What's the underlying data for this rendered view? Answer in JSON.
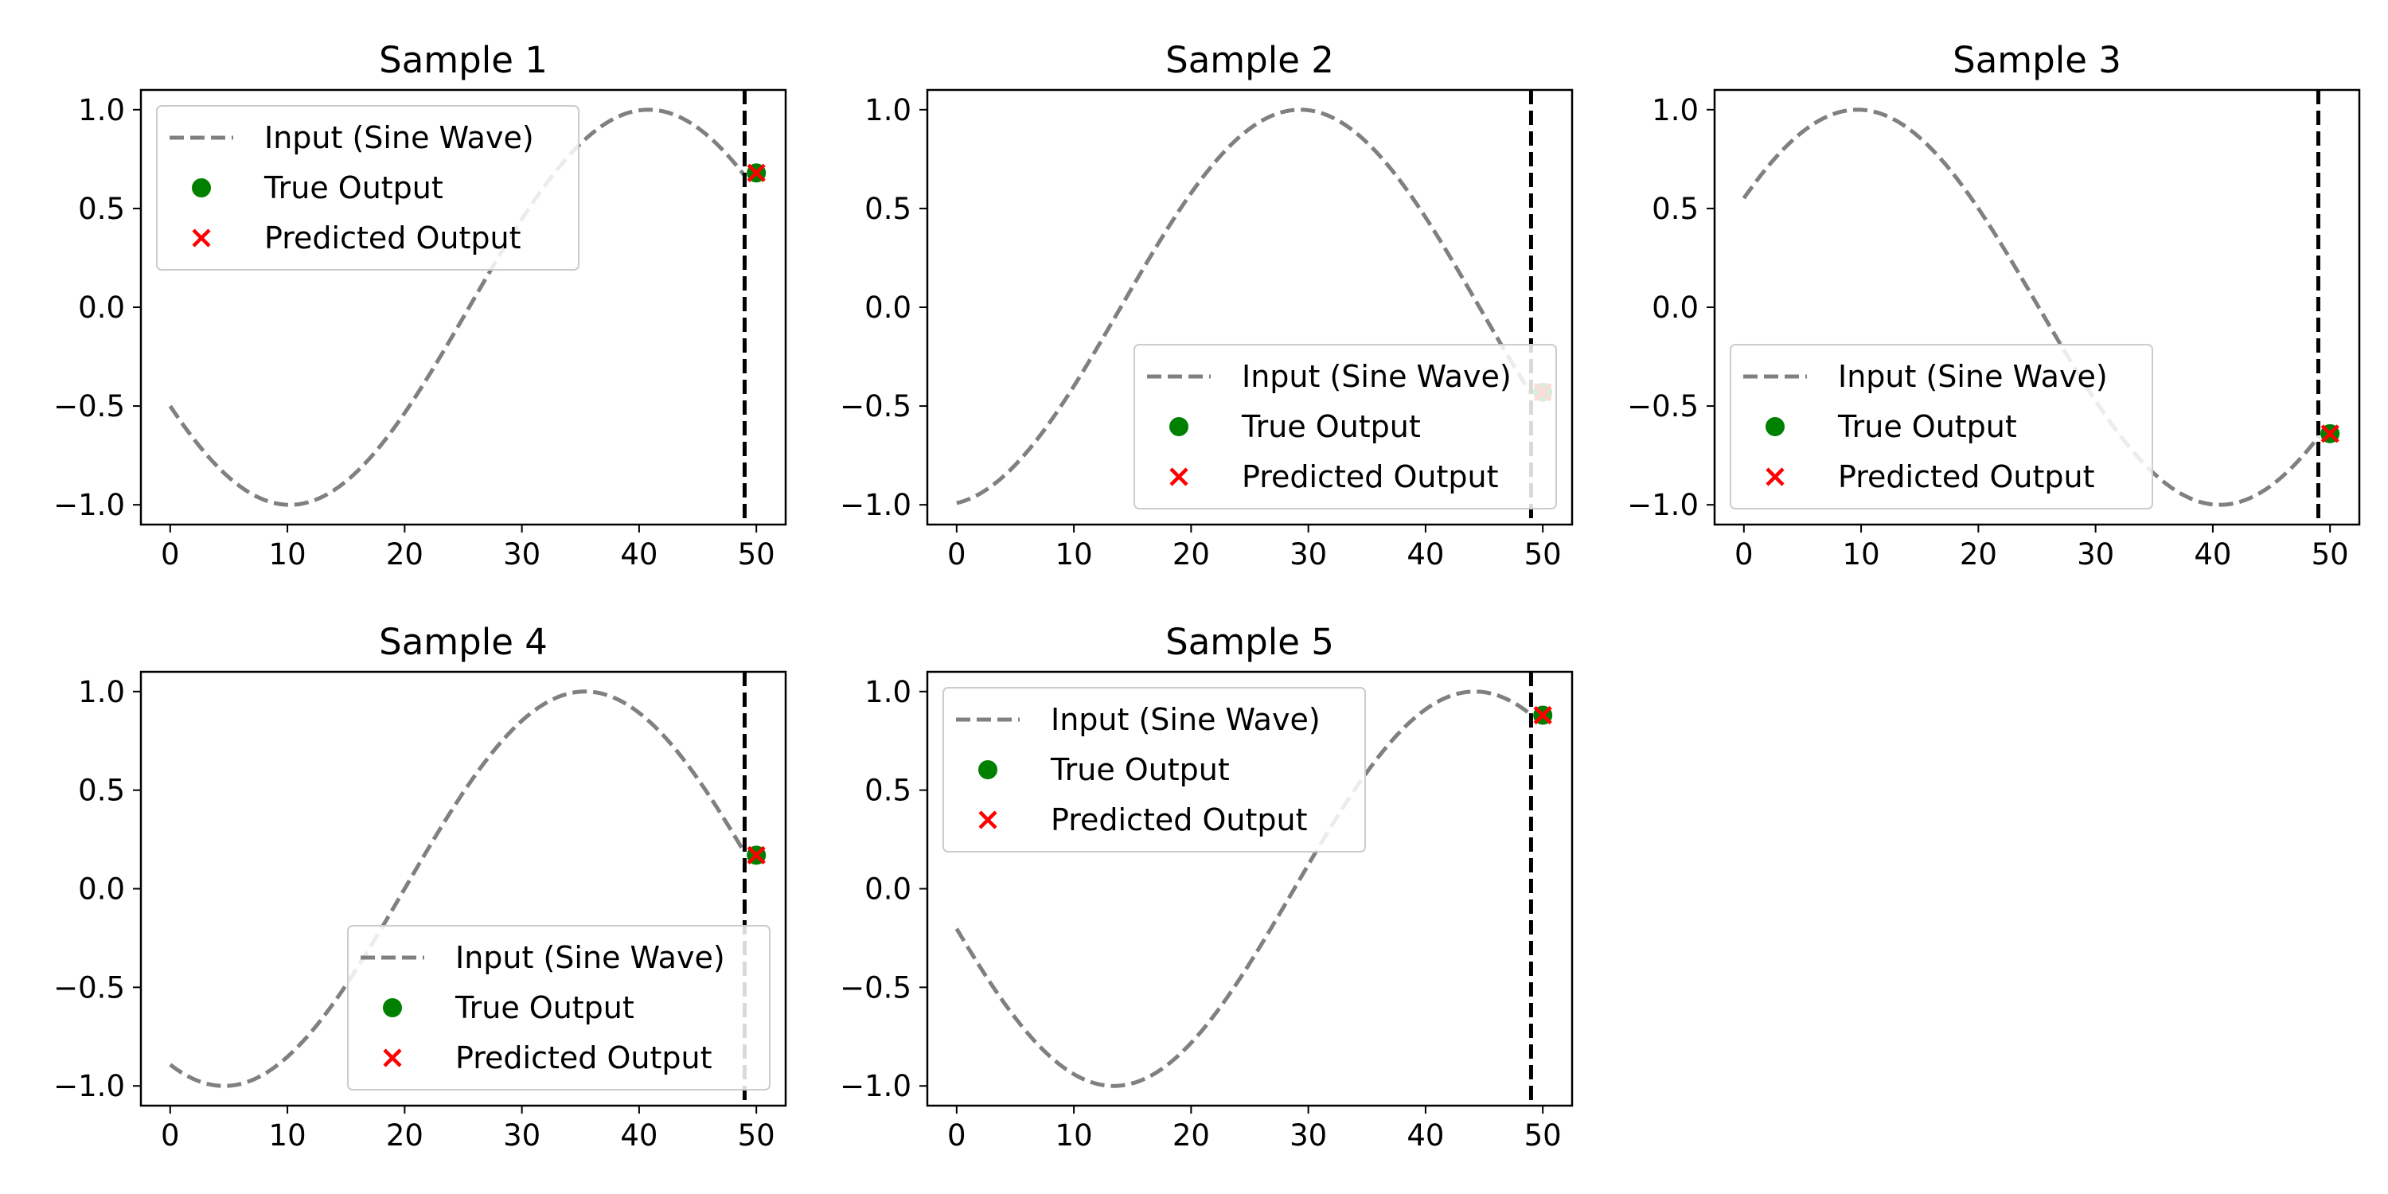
{
  "chart_data": [
    {
      "type": "line",
      "title": "Sample 1",
      "xlim": [
        -2.5,
        52.5
      ],
      "ylim": [
        -1.1,
        1.1
      ],
      "xticks": [
        0,
        10,
        20,
        30,
        40,
        50
      ],
      "xtick_labels": [
        "0",
        "10",
        "20",
        "30",
        "40",
        "50"
      ],
      "yticks": [
        -1.0,
        -0.5,
        0.0,
        0.5,
        1.0
      ],
      "ytick_labels": [
        "−1.0",
        "−0.5",
        "0.0",
        "0.5",
        "1.0"
      ],
      "vline_x": 49,
      "sine": {
        "x_start": 0,
        "x_end": 49,
        "y_start": -0.53,
        "trough_x": 10.2,
        "peak_x": 40.8
      },
      "true_output": {
        "x": 50,
        "y": 0.68
      },
      "predicted_output": {
        "x": 50,
        "y": 0.68
      },
      "legend": {
        "location": "upper-left",
        "entries": [
          "Input (Sine Wave)",
          "True Output",
          "Predicted Output"
        ]
      }
    },
    {
      "type": "line",
      "title": "Sample 2",
      "xlim": [
        -2.5,
        52.5
      ],
      "ylim": [
        -1.1,
        1.1
      ],
      "xticks": [
        0,
        10,
        20,
        30,
        40,
        50
      ],
      "xtick_labels": [
        "0",
        "10",
        "20",
        "30",
        "40",
        "50"
      ],
      "yticks": [
        -1.0,
        -0.5,
        0.0,
        0.5,
        1.0
      ],
      "ytick_labels": [
        "−1.0",
        "−0.5",
        "0.0",
        "0.5",
        "1.0"
      ],
      "vline_x": 49,
      "sine": {
        "x_start": 0,
        "x_end": 49,
        "y_start": -0.98,
        "trough_x": -1.3,
        "peak_x": 29.3
      },
      "true_output": {
        "x": 50,
        "y": -0.43
      },
      "predicted_output": {
        "x": 50,
        "y": -0.43
      },
      "legend": {
        "location": "lower-right",
        "entries": [
          "Input (Sine Wave)",
          "True Output",
          "Predicted Output"
        ]
      }
    },
    {
      "type": "line",
      "title": "Sample 3",
      "xlim": [
        -2.5,
        52.5
      ],
      "ylim": [
        -1.1,
        1.1
      ],
      "xticks": [
        0,
        10,
        20,
        30,
        40,
        50
      ],
      "xtick_labels": [
        "0",
        "10",
        "20",
        "30",
        "40",
        "50"
      ],
      "yticks": [
        -1.0,
        -0.5,
        0.0,
        0.5,
        1.0
      ],
      "ytick_labels": [
        "−1.0",
        "−0.5",
        "0.0",
        "0.5",
        "1.0"
      ],
      "vline_x": 49,
      "sine": {
        "x_start": 0,
        "x_end": 49,
        "y_start": 0.56,
        "trough_x": 40.6,
        "peak_x": 9.7
      },
      "true_output": {
        "x": 50,
        "y": -0.64
      },
      "predicted_output": {
        "x": 50,
        "y": -0.64
      },
      "legend": {
        "location": "lower-left",
        "entries": [
          "Input (Sine Wave)",
          "True Output",
          "Predicted Output"
        ]
      }
    },
    {
      "type": "line",
      "title": "Sample 4",
      "xlim": [
        -2.5,
        52.5
      ],
      "ylim": [
        -1.1,
        1.1
      ],
      "xticks": [
        0,
        10,
        20,
        30,
        40,
        50
      ],
      "xtick_labels": [
        "0",
        "10",
        "20",
        "30",
        "40",
        "50"
      ],
      "yticks": [
        -1.0,
        -0.5,
        0.0,
        0.5,
        1.0
      ],
      "ytick_labels": [
        "−1.0",
        "−0.5",
        "0.0",
        "0.5",
        "1.0"
      ],
      "vline_x": 49,
      "sine": {
        "x_start": 0,
        "x_end": 49,
        "y_start": -0.9,
        "trough_x": 4.6,
        "peak_x": 35.4
      },
      "true_output": {
        "x": 50,
        "y": 0.17
      },
      "predicted_output": {
        "x": 50,
        "y": 0.17
      },
      "legend": {
        "location": "lower-right",
        "entries": [
          "Input (Sine Wave)",
          "True Output",
          "Predicted Output"
        ]
      }
    },
    {
      "type": "line",
      "title": "Sample 5",
      "xlim": [
        -2.5,
        52.5
      ],
      "ylim": [
        -1.1,
        1.1
      ],
      "xticks": [
        0,
        10,
        20,
        30,
        40,
        50
      ],
      "xtick_labels": [
        "0",
        "10",
        "20",
        "30",
        "40",
        "50"
      ],
      "yticks": [
        -1.0,
        -0.5,
        0.0,
        0.5,
        1.0
      ],
      "ytick_labels": [
        "−1.0",
        "−0.5",
        "0.0",
        "0.5",
        "1.0"
      ],
      "vline_x": 49,
      "sine": {
        "x_start": 0,
        "x_end": 49,
        "y_start": -0.21,
        "trough_x": 13.4,
        "peak_x": 44.2
      },
      "true_output": {
        "x": 50,
        "y": 0.88
      },
      "predicted_output": {
        "x": 50,
        "y": 0.88
      },
      "legend": {
        "location": "upper-left",
        "entries": [
          "Input (Sine Wave)",
          "True Output",
          "Predicted Output"
        ]
      }
    }
  ],
  "colors": {
    "input_line": "#808080",
    "true_output": "#008000",
    "predicted_output": "#ff0000",
    "vline": "#000000",
    "axes": "#000000",
    "legend_border": "#cccccc"
  }
}
